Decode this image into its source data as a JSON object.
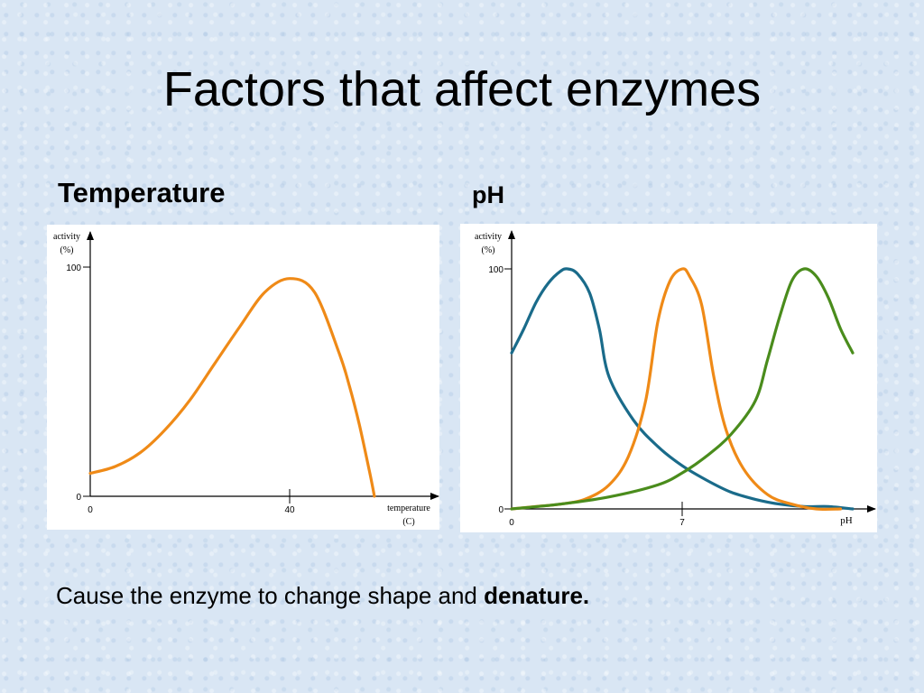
{
  "slide": {
    "title": "Factors that affect enzymes",
    "caption_prefix": "Cause the enzyme to change shape and ",
    "caption_bold": "denature."
  },
  "colors": {
    "orange": "#ef8a17",
    "teal": "#1a6b8a",
    "green": "#4a8c1c",
    "axis": "#000000"
  },
  "chart_data": [
    {
      "type": "line",
      "title": "Temperature",
      "ylabel_line1": "activity",
      "ylabel_line2": "(%)",
      "xlabel_line1": "temperature",
      "xlabel_line2": "(C)",
      "xlim": [
        0,
        70
      ],
      "ylim": [
        0,
        100
      ],
      "xtick_labels": [
        "0",
        "40"
      ],
      "ytick_labels": [
        "0",
        "100"
      ],
      "series": [
        {
          "color": "#ef8a17",
          "x": [
            0,
            5,
            10,
            15,
            20,
            25,
            30,
            35,
            40,
            45,
            50,
            52,
            54,
            56,
            57
          ],
          "y": [
            10,
            13,
            19,
            29,
            42,
            58,
            74,
            89,
            95,
            89,
            62,
            48,
            31,
            11,
            0
          ]
        }
      ]
    },
    {
      "type": "line",
      "title": "pH",
      "ylabel_line1": "activity",
      "ylabel_line2": "(%)",
      "xlabel": "pH",
      "xlim": [
        0,
        14
      ],
      "ylim": [
        0,
        100
      ],
      "xtick_labels": [
        "0",
        "7"
      ],
      "ytick_labels": [
        "0",
        "100"
      ],
      "series": [
        {
          "color": "#1a6b8a",
          "x": [
            0,
            0.5,
            1,
            1.5,
            2,
            2.3,
            2.7,
            3.2,
            3.6,
            4,
            5,
            6,
            7,
            8,
            9,
            10,
            11,
            12,
            13,
            14
          ],
          "y": [
            65,
            75,
            86,
            94,
            99,
            100,
            98,
            90,
            75,
            55,
            37,
            26,
            18,
            12,
            7,
            4,
            2,
            1,
            1,
            0
          ]
        },
        {
          "color": "#ef8a17",
          "x": [
            0,
            1,
            2,
            3,
            4,
            4.8,
            5.5,
            6,
            6.5,
            7,
            7.3,
            7.8,
            8.3,
            8.8,
            9.5,
            10.5,
            11.5,
            12.5,
            13.5
          ],
          "y": [
            0,
            1,
            2,
            4,
            10,
            22,
            45,
            78,
            95,
            100,
            97,
            85,
            55,
            33,
            17,
            6,
            2,
            0,
            0
          ]
        },
        {
          "color": "#4a8c1c",
          "x": [
            0,
            2,
            4,
            6,
            7,
            8,
            9,
            10,
            10.5,
            11,
            11.5,
            12,
            12.5,
            13,
            13.5,
            14
          ],
          "y": [
            0,
            2,
            5,
            10,
            15,
            22,
            31,
            45,
            62,
            80,
            95,
            100,
            97,
            88,
            75,
            65
          ]
        }
      ]
    }
  ]
}
